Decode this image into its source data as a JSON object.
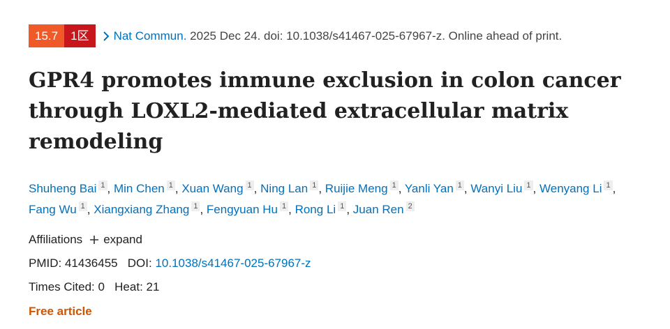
{
  "badges": {
    "impact": "15.7",
    "zone": "1区"
  },
  "citation": {
    "journal": "Nat Commun.",
    "details": "2025 Dec 24. doi: 10.1038/s41467-025-67967-z. Online ahead of print."
  },
  "title": "GPR4 promotes immune exclusion in colon cancer through LOXL2-mediated extracellular matrix remodeling",
  "author_separator": ",",
  "authors": [
    {
      "name": "Shuheng Bai",
      "aff": "1"
    },
    {
      "name": "Min Chen",
      "aff": "1"
    },
    {
      "name": "Xuan Wang",
      "aff": "1"
    },
    {
      "name": "Ning Lan",
      "aff": "1"
    },
    {
      "name": "Ruijie Meng",
      "aff": "1"
    },
    {
      "name": "Yanli Yan",
      "aff": "1"
    },
    {
      "name": "Wanyi Liu",
      "aff": "1"
    },
    {
      "name": "Wenyang Li",
      "aff": "1"
    },
    {
      "name": "Fang Wu",
      "aff": "1"
    },
    {
      "name": "Xiangxiang Zhang",
      "aff": "1"
    },
    {
      "name": "Fengyuan Hu",
      "aff": "1"
    },
    {
      "name": "Rong Li",
      "aff": "1"
    },
    {
      "name": "Juan Ren",
      "aff": "2"
    }
  ],
  "affiliations": {
    "label": "Affiliations",
    "expand": "expand"
  },
  "identifiers": {
    "pmid_label": "PMID:",
    "pmid": "41436455",
    "doi_label": "DOI:",
    "doi": "10.1038/s41467-025-67967-z"
  },
  "metrics": {
    "cited_label": "Times Cited:",
    "cited": "0",
    "heat_label": "Heat:",
    "heat": "21"
  },
  "free": "Free article"
}
